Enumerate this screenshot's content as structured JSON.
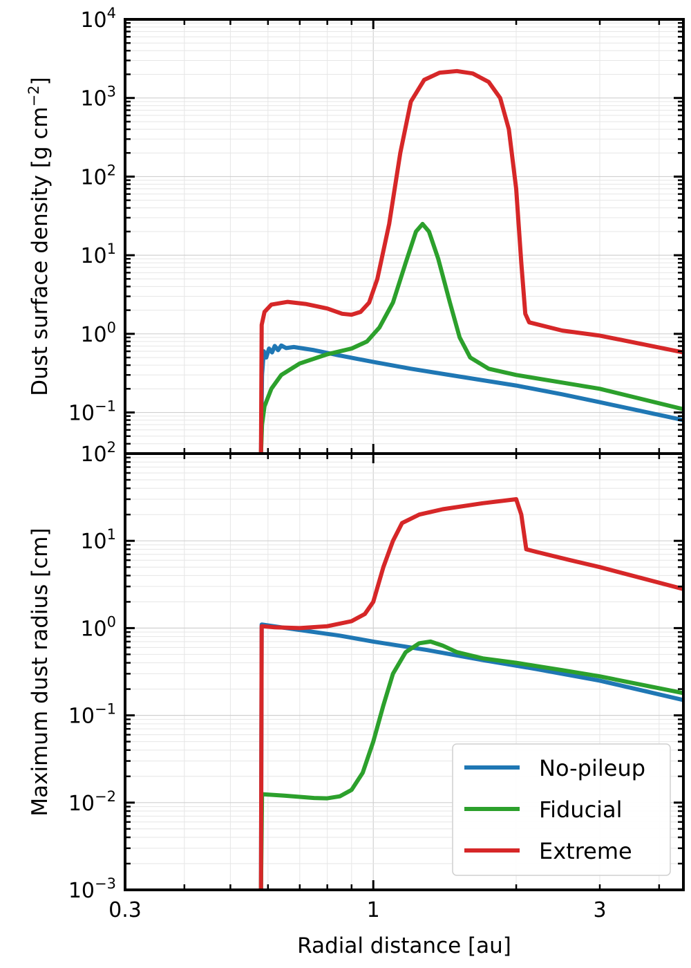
{
  "chart_data": [
    {
      "type": "line",
      "panel": "top",
      "ylabel": "Dust surface density [g cm",
      "ylabel_sup": "−2",
      "ylabel_end": "]",
      "xscale": "log",
      "yscale": "log",
      "xlim": [
        0.3,
        4.5
      ],
      "ylim": [
        0.03,
        10000
      ],
      "grid": true,
      "y_ticks": [
        {
          "base": "10",
          "exp": "−1",
          "value": 0.1
        },
        {
          "base": "10",
          "exp": "0",
          "value": 1
        },
        {
          "base": "10",
          "exp": "1",
          "value": 10
        },
        {
          "base": "10",
          "exp": "2",
          "value": 100
        },
        {
          "base": "10",
          "exp": "3",
          "value": 1000
        },
        {
          "base": "10",
          "exp": "4",
          "value": 10000
        }
      ],
      "series": [
        {
          "name": "No-pileup",
          "color": "#1f77b4",
          "points": [
            [
              0.58,
              0.03
            ],
            [
              0.583,
              0.3
            ],
            [
              0.588,
              0.6
            ],
            [
              0.595,
              0.5
            ],
            [
              0.603,
              0.65
            ],
            [
              0.612,
              0.58
            ],
            [
              0.62,
              0.7
            ],
            [
              0.63,
              0.62
            ],
            [
              0.64,
              0.71
            ],
            [
              0.655,
              0.66
            ],
            [
              0.68,
              0.68
            ],
            [
              0.75,
              0.62
            ],
            [
              0.85,
              0.53
            ],
            [
              1.0,
              0.44
            ],
            [
              1.2,
              0.36
            ],
            [
              1.5,
              0.29
            ],
            [
              2.0,
              0.22
            ],
            [
              2.5,
              0.17
            ],
            [
              3.0,
              0.135
            ],
            [
              4.5,
              0.08
            ]
          ]
        },
        {
          "name": "Fiducial",
          "color": "#2ca02c",
          "points": [
            [
              0.58,
              0.03
            ],
            [
              0.583,
              0.07
            ],
            [
              0.59,
              0.12
            ],
            [
              0.61,
              0.2
            ],
            [
              0.64,
              0.3
            ],
            [
              0.7,
              0.42
            ],
            [
              0.8,
              0.55
            ],
            [
              0.9,
              0.65
            ],
            [
              0.97,
              0.8
            ],
            [
              1.03,
              1.2
            ],
            [
              1.1,
              2.5
            ],
            [
              1.17,
              8
            ],
            [
              1.23,
              20
            ],
            [
              1.27,
              25
            ],
            [
              1.31,
              20
            ],
            [
              1.37,
              9
            ],
            [
              1.45,
              2.5
            ],
            [
              1.52,
              0.9
            ],
            [
              1.6,
              0.5
            ],
            [
              1.75,
              0.36
            ],
            [
              2.0,
              0.3
            ],
            [
              2.5,
              0.24
            ],
            [
              3.0,
              0.2
            ],
            [
              4.5,
              0.11
            ]
          ]
        },
        {
          "name": "Extreme",
          "color": "#d62728",
          "points": [
            [
              0.58,
              0.03
            ],
            [
              0.582,
              1.3
            ],
            [
              0.59,
              1.9
            ],
            [
              0.61,
              2.35
            ],
            [
              0.66,
              2.55
            ],
            [
              0.72,
              2.4
            ],
            [
              0.8,
              2.1
            ],
            [
              0.86,
              1.8
            ],
            [
              0.9,
              1.75
            ],
            [
              0.94,
              1.9
            ],
            [
              0.98,
              2.5
            ],
            [
              1.02,
              5
            ],
            [
              1.08,
              25
            ],
            [
              1.14,
              200
            ],
            [
              1.2,
              900
            ],
            [
              1.28,
              1700
            ],
            [
              1.38,
              2100
            ],
            [
              1.5,
              2200
            ],
            [
              1.62,
              2050
            ],
            [
              1.75,
              1600
            ],
            [
              1.85,
              1000
            ],
            [
              1.93,
              400
            ],
            [
              2.0,
              70
            ],
            [
              2.05,
              8
            ],
            [
              2.09,
              1.8
            ],
            [
              2.13,
              1.4
            ],
            [
              2.5,
              1.1
            ],
            [
              3.0,
              0.95
            ],
            [
              4.5,
              0.58
            ]
          ]
        }
      ]
    },
    {
      "type": "line",
      "panel": "bottom",
      "ylabel": "Maximum dust radius [cm]",
      "xlabel": "Radial distance [au]",
      "xscale": "log",
      "yscale": "log",
      "xlim": [
        0.3,
        4.5
      ],
      "ylim": [
        0.001,
        100
      ],
      "grid": true,
      "x_ticks": [
        {
          "label": "0.3",
          "value": 0.3
        },
        {
          "label": "1",
          "value": 1
        },
        {
          "label": "3",
          "value": 3
        }
      ],
      "y_ticks": [
        {
          "base": "10",
          "exp": "−3",
          "value": 0.001
        },
        {
          "base": "10",
          "exp": "−2",
          "value": 0.01
        },
        {
          "base": "10",
          "exp": "−1",
          "value": 0.1
        },
        {
          "base": "10",
          "exp": "0",
          "value": 1
        },
        {
          "base": "10",
          "exp": "1",
          "value": 10
        },
        {
          "base": "10",
          "exp": "2",
          "value": 100
        }
      ],
      "legend": {
        "position": "lower-right",
        "entries": [
          "No-pileup",
          "Fiducial",
          "Extreme"
        ]
      },
      "series": [
        {
          "name": "No-pileup",
          "color": "#1f77b4",
          "points": [
            [
              0.58,
              0.001
            ],
            [
              0.582,
              1.1
            ],
            [
              0.7,
              0.95
            ],
            [
              0.85,
              0.82
            ],
            [
              1.0,
              0.7
            ],
            [
              1.3,
              0.56
            ],
            [
              1.7,
              0.43
            ],
            [
              2.2,
              0.34
            ],
            [
              3.0,
              0.25
            ],
            [
              4.5,
              0.15
            ]
          ]
        },
        {
          "name": "Fiducial",
          "color": "#2ca02c",
          "points": [
            [
              0.58,
              0.001
            ],
            [
              0.583,
              0.0125
            ],
            [
              0.65,
              0.012
            ],
            [
              0.75,
              0.0113
            ],
            [
              0.8,
              0.0112
            ],
            [
              0.85,
              0.0118
            ],
            [
              0.9,
              0.014
            ],
            [
              0.95,
              0.022
            ],
            [
              1.0,
              0.05
            ],
            [
              1.05,
              0.13
            ],
            [
              1.1,
              0.3
            ],
            [
              1.17,
              0.53
            ],
            [
              1.25,
              0.67
            ],
            [
              1.32,
              0.7
            ],
            [
              1.4,
              0.63
            ],
            [
              1.5,
              0.53
            ],
            [
              1.7,
              0.45
            ],
            [
              2.0,
              0.4
            ],
            [
              2.5,
              0.33
            ],
            [
              3.0,
              0.28
            ],
            [
              4.5,
              0.18
            ]
          ]
        },
        {
          "name": "Extreme",
          "color": "#d62728",
          "points": [
            [
              0.58,
              0.001
            ],
            [
              0.582,
              1.05
            ],
            [
              0.62,
              1.02
            ],
            [
              0.7,
              1.0
            ],
            [
              0.8,
              1.05
            ],
            [
              0.9,
              1.2
            ],
            [
              0.96,
              1.45
            ],
            [
              1.0,
              2.0
            ],
            [
              1.05,
              5
            ],
            [
              1.1,
              10
            ],
            [
              1.15,
              16
            ],
            [
              1.25,
              20
            ],
            [
              1.4,
              23
            ],
            [
              1.7,
              27
            ],
            [
              2.0,
              30
            ],
            [
              2.05,
              20
            ],
            [
              2.1,
              8
            ],
            [
              2.2,
              7.5
            ],
            [
              2.6,
              6
            ],
            [
              3.0,
              5
            ],
            [
              4.5,
              2.8
            ]
          ]
        }
      ]
    }
  ]
}
